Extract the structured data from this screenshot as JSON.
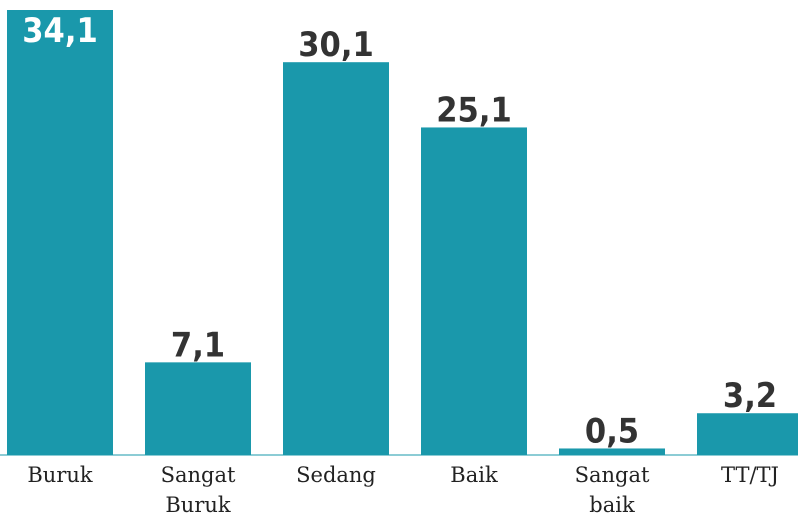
{
  "chart_data": {
    "type": "bar",
    "categories": [
      "Buruk",
      "Sangat Buruk",
      "Sedang",
      "Baik",
      "Sangat baik",
      "TT/TJ"
    ],
    "values": [
      34.1,
      7.1,
      30.1,
      25.1,
      0.5,
      3.2
    ],
    "value_labels": [
      "34,1",
      "7,1",
      "30,1",
      "25,1",
      "0,5",
      "3,2"
    ],
    "color": "#1a98ab"
  }
}
